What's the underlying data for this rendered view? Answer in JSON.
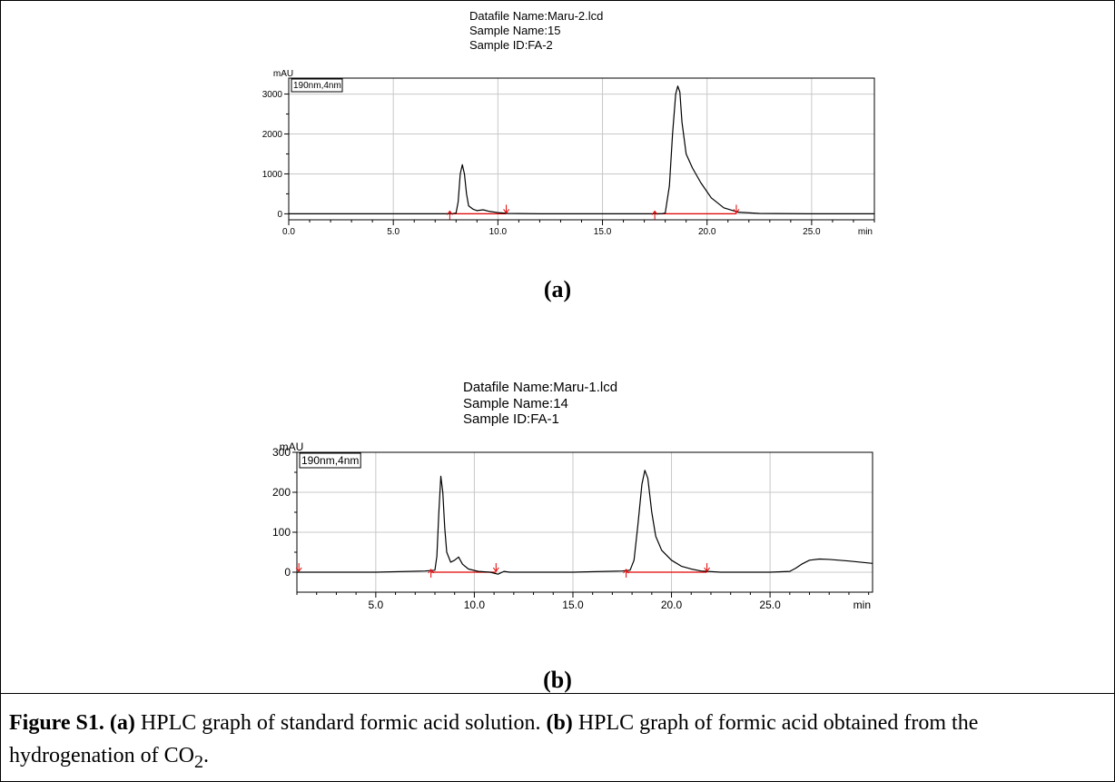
{
  "panel_a": {
    "header_lines": [
      "Datafile Name:Maru-2.lcd",
      "Sample Name:15",
      "Sample ID:FA-2"
    ],
    "label": "(a)"
  },
  "panel_b": {
    "header_lines": [
      "Datafile Name:Maru-1.lcd",
      "Sample Name:14",
      "Sample ID:FA-1"
    ],
    "label": "(b)"
  },
  "caption": {
    "p1_bold": "Figure S1.",
    "p2_bold": "(a)",
    "p3": " HPLC graph of standard formic acid solution. ",
    "p4_bold": "(b)",
    "p5": " HPLC graph of formic acid obtained from the hydrogenation of CO",
    "p6_sub": "2",
    "p7": "."
  },
  "chart_data": [
    {
      "type": "line",
      "title": "",
      "ylabel": "mAU",
      "xlabel": "min",
      "legend": "190nm,4nm",
      "xlim": [
        0,
        28
      ],
      "ylim": [
        -150,
        3400
      ],
      "x_ticks": [
        0,
        5,
        10,
        15,
        20,
        25
      ],
      "x_tick_labels": [
        "0.0",
        "5.0",
        "10.0",
        "15.0",
        "20.0",
        "25.0"
      ],
      "y_ticks": [
        0,
        1000,
        2000,
        3000
      ],
      "y_tick_labels": [
        "0",
        "1000",
        "2000",
        "3000"
      ],
      "grid": true,
      "series": [
        {
          "x": [
            0,
            5,
            7.8,
            8.0,
            8.1,
            8.2,
            8.3,
            8.4,
            8.5,
            8.6,
            8.8,
            9.0,
            9.3,
            9.6,
            10.0,
            10.5,
            12,
            15,
            17.8,
            18.0,
            18.2,
            18.35,
            18.5,
            18.6,
            18.7,
            18.8,
            19.0,
            19.3,
            19.7,
            20.2,
            20.8,
            21.5,
            22.5,
            25,
            28
          ],
          "y": [
            0,
            0,
            0,
            20,
            300,
            1000,
            1230,
            1000,
            500,
            200,
            120,
            80,
            100,
            60,
            30,
            10,
            0,
            0,
            0,
            20,
            700,
            2000,
            3000,
            3200,
            3050,
            2300,
            1500,
            1150,
            780,
            400,
            150,
            40,
            10,
            0,
            0
          ]
        }
      ],
      "integration_marks": [
        {
          "x": 7.7,
          "dir": "up"
        },
        {
          "x": 10.4,
          "dir": "down"
        },
        {
          "x": 17.5,
          "dir": "up"
        },
        {
          "x": 21.4,
          "dir": "down"
        }
      ]
    },
    {
      "type": "line",
      "title": "",
      "ylabel": "mAU",
      "xlabel": "min",
      "legend": "190nm,4nm",
      "xlim": [
        1,
        30.2
      ],
      "ylim": [
        -50,
        300
      ],
      "x_ticks": [
        5,
        10,
        15,
        20,
        25
      ],
      "x_tick_labels": [
        "5.0",
        "10.0",
        "15.0",
        "20.0",
        "25.0"
      ],
      "y_ticks": [
        0,
        100,
        200,
        300
      ],
      "y_tick_labels": [
        "0",
        "100",
        "200",
        "300"
      ],
      "grid": true,
      "series": [
        {
          "x": [
            1,
            5,
            7.5,
            8.0,
            8.1,
            8.2,
            8.3,
            8.4,
            8.5,
            8.6,
            8.8,
            9.0,
            9.2,
            9.4,
            9.7,
            10.2,
            10.8,
            11.2,
            11.5,
            11.8,
            12.5,
            15,
            17.5,
            17.9,
            18.1,
            18.3,
            18.5,
            18.65,
            18.8,
            19.0,
            19.2,
            19.5,
            20.0,
            20.5,
            21.0,
            21.5,
            22.5,
            25,
            26.0,
            26.3,
            26.6,
            27.0,
            27.5,
            28.0,
            29.0,
            30.2
          ],
          "y": [
            0,
            0,
            3,
            5,
            40,
            150,
            240,
            200,
            110,
            50,
            25,
            30,
            38,
            20,
            8,
            2,
            0,
            -5,
            2,
            0,
            0,
            0,
            3,
            5,
            30,
            120,
            220,
            255,
            235,
            150,
            90,
            55,
            30,
            15,
            8,
            3,
            0,
            0,
            2,
            10,
            20,
            30,
            33,
            32,
            28,
            22
          ]
        }
      ],
      "integration_marks": [
        {
          "x": 1.1,
          "dir": "down"
        },
        {
          "x": 7.8,
          "dir": "up"
        },
        {
          "x": 11.1,
          "dir": "down"
        },
        {
          "x": 17.7,
          "dir": "up"
        },
        {
          "x": 21.8,
          "dir": "down"
        }
      ]
    }
  ]
}
